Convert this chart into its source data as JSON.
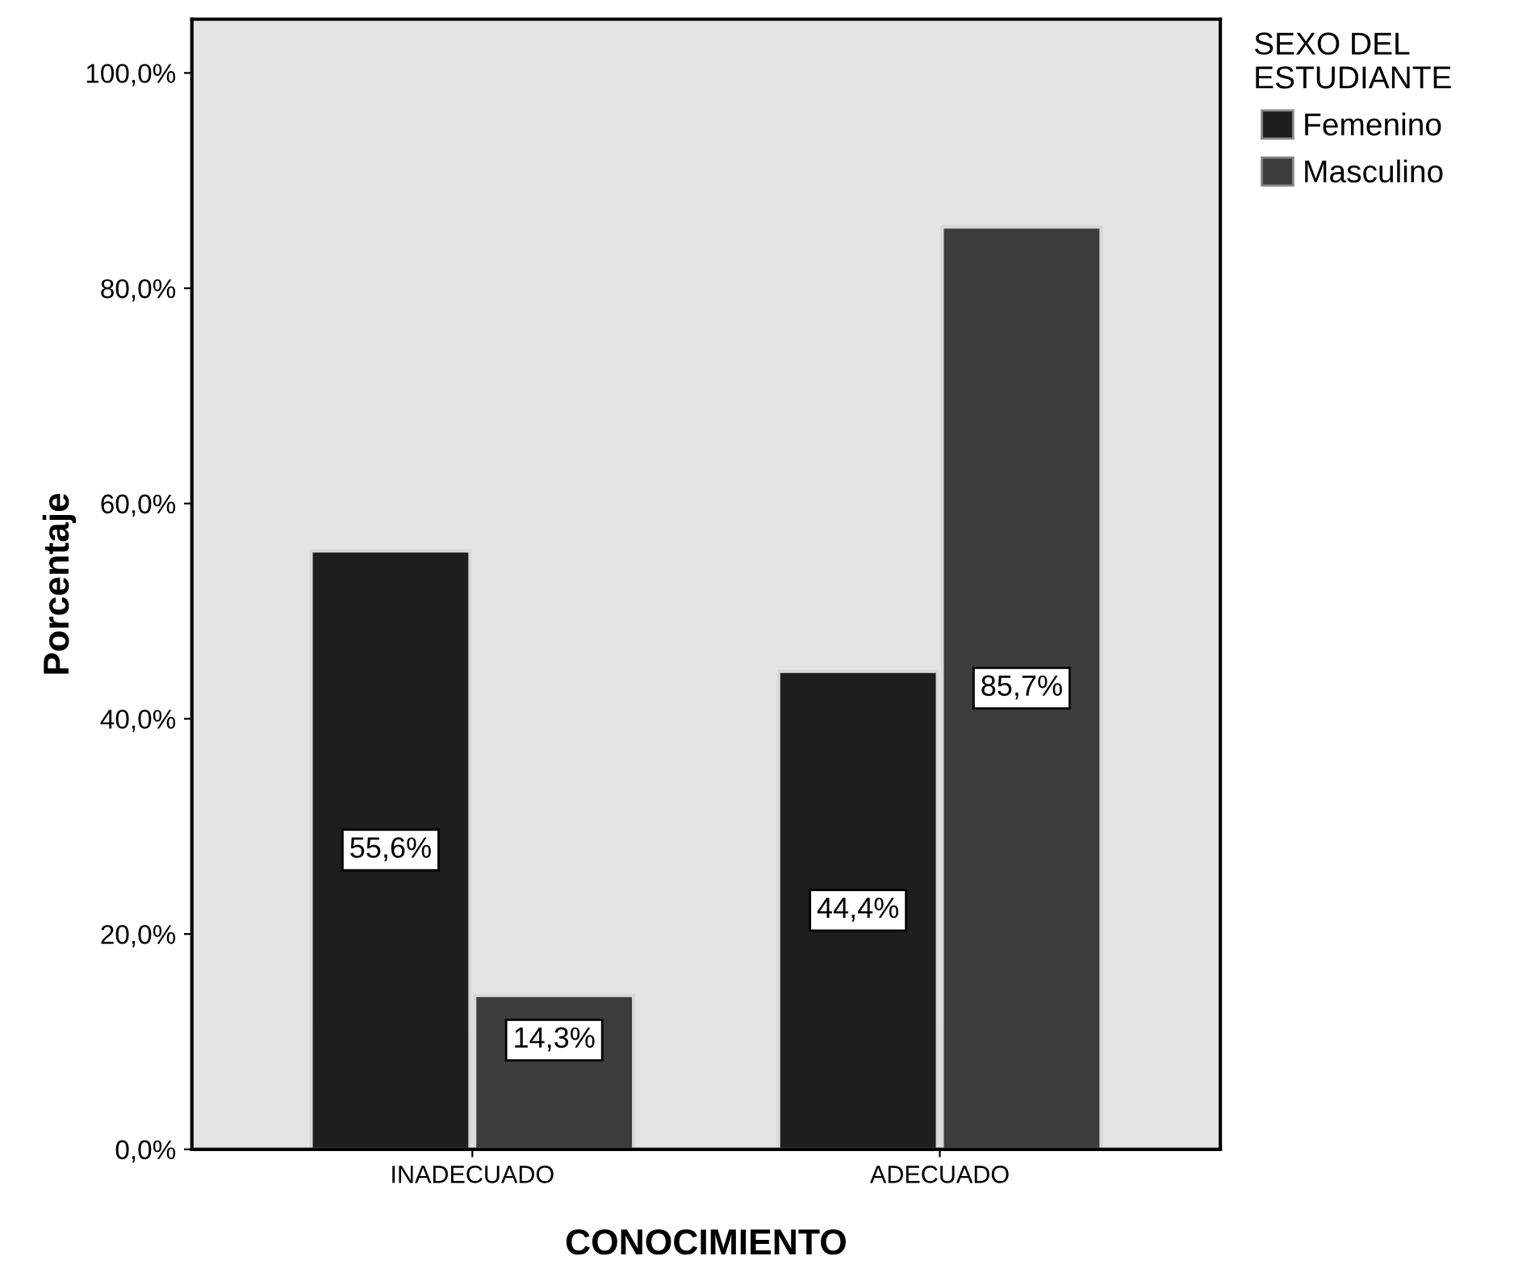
{
  "chart_data": {
    "type": "bar",
    "xlabel": "CONOCIMIENTO",
    "ylabel": "Porcentaje",
    "legend_title": "SEXO DEL\nESTUDIANTE",
    "categories": [
      "INADECUADO",
      "ADECUADO"
    ],
    "series": [
      {
        "name": "Femenino",
        "color": "#1e1e1e",
        "values": [
          55.6,
          44.4
        ],
        "value_labels": [
          "55,6%",
          "44,4%"
        ]
      },
      {
        "name": "Masculino",
        "color": "#3c3c3c",
        "values": [
          14.3,
          85.7
        ],
        "value_labels": [
          "14,3%",
          "85,7%"
        ]
      }
    ],
    "ylim": [
      0,
      105
    ],
    "yticks": [
      {
        "value": 0,
        "label": "0,0%"
      },
      {
        "value": 20,
        "label": "20,0%"
      },
      {
        "value": 40,
        "label": "40,0%"
      },
      {
        "value": 60,
        "label": "60,0%"
      },
      {
        "value": 80,
        "label": "80,0%"
      },
      {
        "value": 100,
        "label": "100,0%"
      }
    ],
    "grid": false,
    "legend": "top right"
  }
}
